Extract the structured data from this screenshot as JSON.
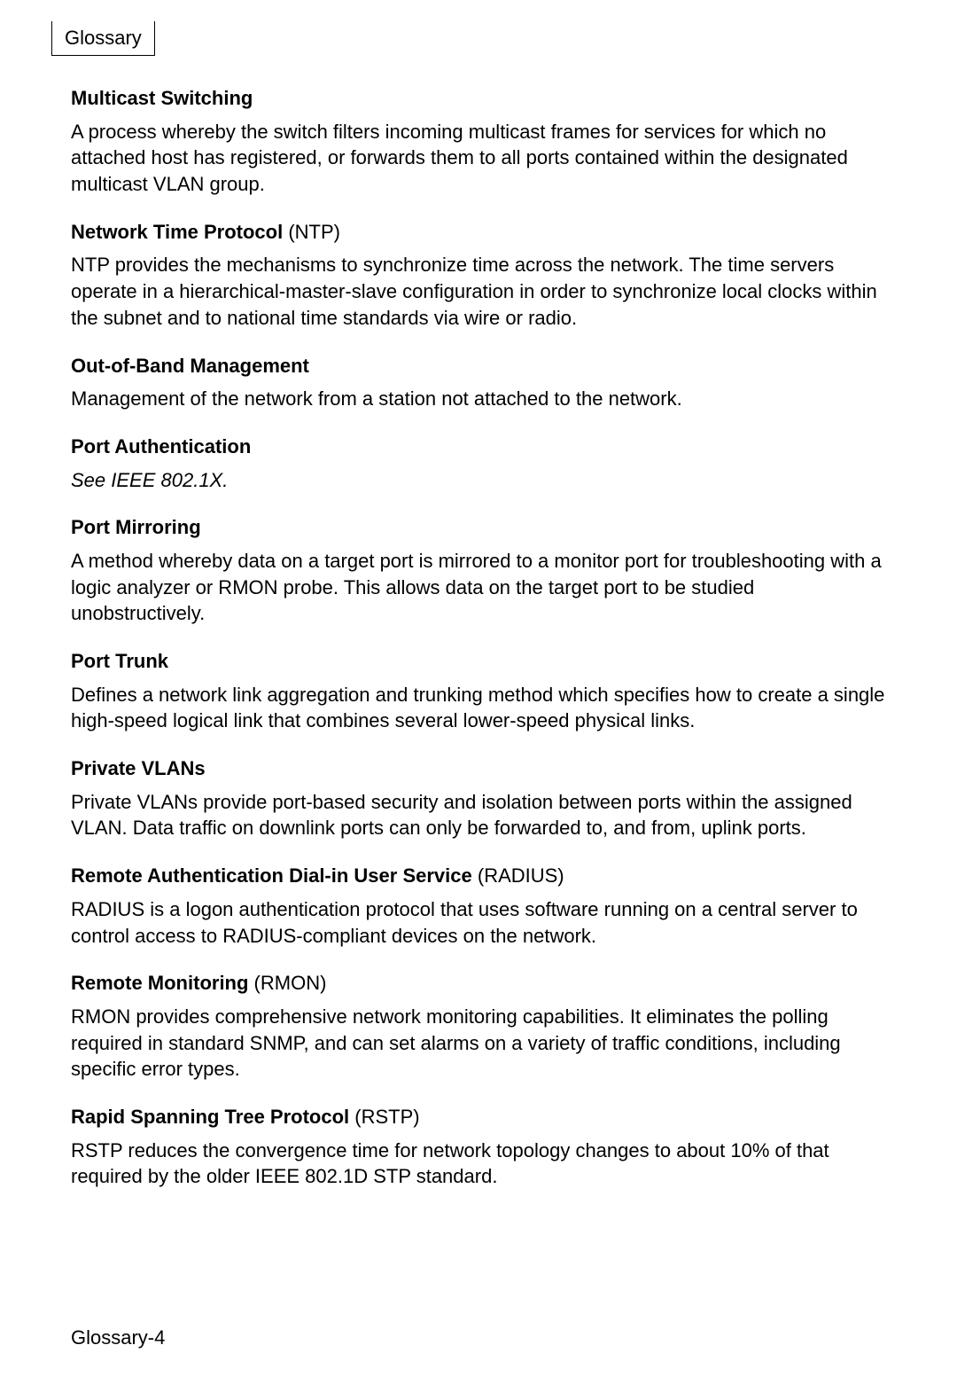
{
  "header": {
    "tab_label": "Glossary"
  },
  "entries": [
    {
      "title_bold": "Multicast Switching",
      "title_acronym": "",
      "body": "A process whereby the switch filters incoming multicast frames for services for which no attached host has registered, or forwards them to all ports contained within the designated multicast VLAN group.",
      "italic": false
    },
    {
      "title_bold": "Network Time Protocol",
      "title_acronym": " (NTP)",
      "body": "NTP provides the mechanisms to synchronize time across the network. The time servers operate in a hierarchical-master-slave configuration in order to synchronize local clocks within the subnet and to national time standards via wire or radio.",
      "italic": false
    },
    {
      "title_bold": "Out-of-Band Management",
      "title_acronym": "",
      "body": "Management of the network from a station not attached to the network.",
      "italic": false
    },
    {
      "title_bold": "Port Authentication",
      "title_acronym": "",
      "body": "See IEEE 802.1X.",
      "italic": true
    },
    {
      "title_bold": "Port Mirroring",
      "title_acronym": "",
      "body": "A method whereby data on a target port is mirrored to a monitor port for troubleshooting with a logic analyzer or RMON probe. This allows data on the target port to be studied unobstructively.",
      "italic": false
    },
    {
      "title_bold": "Port Trunk",
      "title_acronym": "",
      "body": "Defines a network link aggregation and trunking method which specifies how to create a single high-speed logical link that combines several lower-speed physical links.",
      "italic": false
    },
    {
      "title_bold": "Private VLANs",
      "title_acronym": "",
      "body": "Private VLANs provide port-based security and isolation between ports within the assigned VLAN. Data traffic on downlink ports can only be forwarded to, and from, uplink ports.",
      "italic": false
    },
    {
      "title_bold": "Remote Authentication Dial-in User Service",
      "title_acronym": " (RADIUS)",
      "body": "RADIUS is a logon authentication protocol that uses software running on a central server to control access to RADIUS-compliant devices on the network.",
      "italic": false
    },
    {
      "title_bold": "Remote Monitoring",
      "title_acronym": " (RMON)",
      "body": "RMON provides comprehensive network monitoring capabilities. It eliminates the polling required in standard SNMP, and can set alarms on a variety of traffic conditions, including specific error types.",
      "italic": false
    },
    {
      "title_bold": "Rapid Spanning Tree Protocol",
      "title_acronym": " (RSTP)",
      "body": "RSTP reduces the convergence time for network topology changes to about 10% of that required by the older IEEE 802.1D STP standard.",
      "italic": false
    }
  ],
  "footer": {
    "page_label": "Glossary-4"
  }
}
